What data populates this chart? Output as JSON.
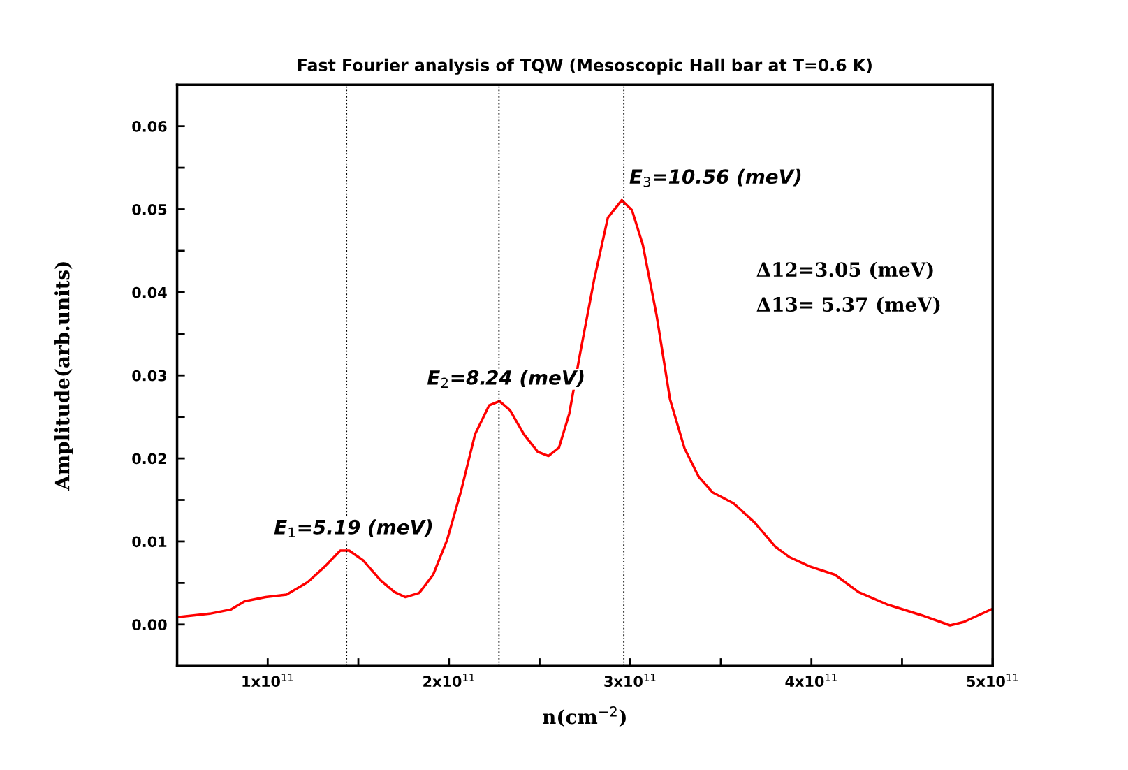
{
  "chart_data": {
    "type": "line",
    "title": "Fast Fourier analysis of TQW (Mesoscopic Hall bar at T=0.6 K)",
    "xlabel": "n(cm$^{−2}$)",
    "ylabel": "Amplitude(arb.units)",
    "xlim": [
      50000000000.0,
      500000000000.0
    ],
    "ylim": [
      -0.005,
      0.065
    ],
    "xticks": [
      {
        "value": 100000000000.0,
        "label": "1x10$^{11}$"
      },
      {
        "value": 150000000000.0,
        "label": null
      },
      {
        "value": 200000000000.0,
        "label": "2x10$^{11}$"
      },
      {
        "value": 250000000000.0,
        "label": null
      },
      {
        "value": 300000000000.0,
        "label": "3x10$^{11}$"
      },
      {
        "value": 350000000000.0,
        "label": null
      },
      {
        "value": 400000000000.0,
        "label": "4x10$^{11}$"
      },
      {
        "value": 450000000000.0,
        "label": null
      },
      {
        "value": 500000000000.0,
        "label": "5x10$^{11}$"
      }
    ],
    "yticks": [
      {
        "value": 0,
        "label": "0.00"
      },
      {
        "value": 0.005,
        "label": null
      },
      {
        "value": 0.01,
        "label": "0.01"
      },
      {
        "value": 0.015,
        "label": null
      },
      {
        "value": 0.02,
        "label": "0.02"
      },
      {
        "value": 0.025,
        "label": null
      },
      {
        "value": 0.03,
        "label": "0.03"
      },
      {
        "value": 0.035,
        "label": null
      },
      {
        "value": 0.04,
        "label": "0.04"
      },
      {
        "value": 0.045,
        "label": null
      },
      {
        "value": 0.05,
        "label": "0.05"
      },
      {
        "value": 0.055,
        "label": null
      },
      {
        "value": 0.06,
        "label": "0.06"
      }
    ],
    "grid": false,
    "legend": false,
    "marker": "none",
    "line_style": "solid",
    "series": [
      {
        "color": "#ff0000",
        "x": [
          50300000000.0,
          68000000000.0,
          79600000000.0,
          87300000000.0,
          98800000000.0,
          110400000000.0,
          122000000000.0,
          131600000000.0,
          140000000000.0,
          145000000000.0,
          152800000000.0,
          162400000000.0,
          170000000000.0,
          176000000000.0,
          183600000000.0,
          191300000000.0,
          199000000000.0,
          206700000000.0,
          214400000000.0,
          222200000000.0,
          227900000000.0,
          233700000000.0,
          241400000000.0,
          249000000000.0,
          254900000000.0,
          260700000000.0,
          266400000000.0,
          272000000000.0,
          280000000000.0,
          287700000000.0,
          295400000000.0,
          301000000000.0,
          307000000000.0,
          314600000000.0,
          322000000000.0,
          330000000000.0,
          337800000000.0,
          345500000000.0,
          357000000000.0,
          368600000000.0,
          380000000000.0,
          388000000000.0,
          399000000000.0,
          413000000000.0,
          426000000000.0,
          442000000000.0,
          461000000000.0,
          476500000000.0,
          484000000000.0,
          500000000000.0
        ],
        "values": [
          0.0009,
          0.0013,
          0.0018,
          0.0028,
          0.0033,
          0.0036,
          0.0051,
          0.007,
          0.0089,
          0.0089,
          0.0077,
          0.0053,
          0.0039,
          0.0033,
          0.0038,
          0.006,
          0.0102,
          0.0161,
          0.0229,
          0.0264,
          0.0269,
          0.0258,
          0.0229,
          0.0208,
          0.0203,
          0.0213,
          0.0254,
          0.0322,
          0.0414,
          0.049,
          0.0511,
          0.0499,
          0.0457,
          0.0372,
          0.0271,
          0.0212,
          0.0178,
          0.0159,
          0.0146,
          0.0123,
          0.0094,
          0.0081,
          0.007,
          0.006,
          0.0039,
          0.0024,
          0.0011,
          -0.0001,
          0.0003,
          0.0019
        ]
      }
    ],
    "ref_lines": [
      {
        "axis": "x",
        "value": 143500000000.0,
        "color": "#000000",
        "line_style": "dotted"
      },
      {
        "axis": "x",
        "value": 227600000000.0,
        "color": "#000000",
        "line_style": "dotted"
      },
      {
        "axis": "x",
        "value": 296500000000.0,
        "color": "#000000",
        "line_style": "dotted"
      }
    ],
    "annotations": [
      {
        "text": "E$_{1}$=5.19 (meV)",
        "x": 143500000000.0,
        "y": 0.0089
      },
      {
        "text": "E$_{2}$=8.24 (meV)",
        "x": 227600000000.0,
        "y": 0.0269
      },
      {
        "text": "E$_{3}$=10.56 (meV)",
        "x": 296500000000.0,
        "y": 0.0511
      },
      "Δ12=3.05 (meV)",
      "Δ13= 5.37 (meV)"
    ]
  }
}
